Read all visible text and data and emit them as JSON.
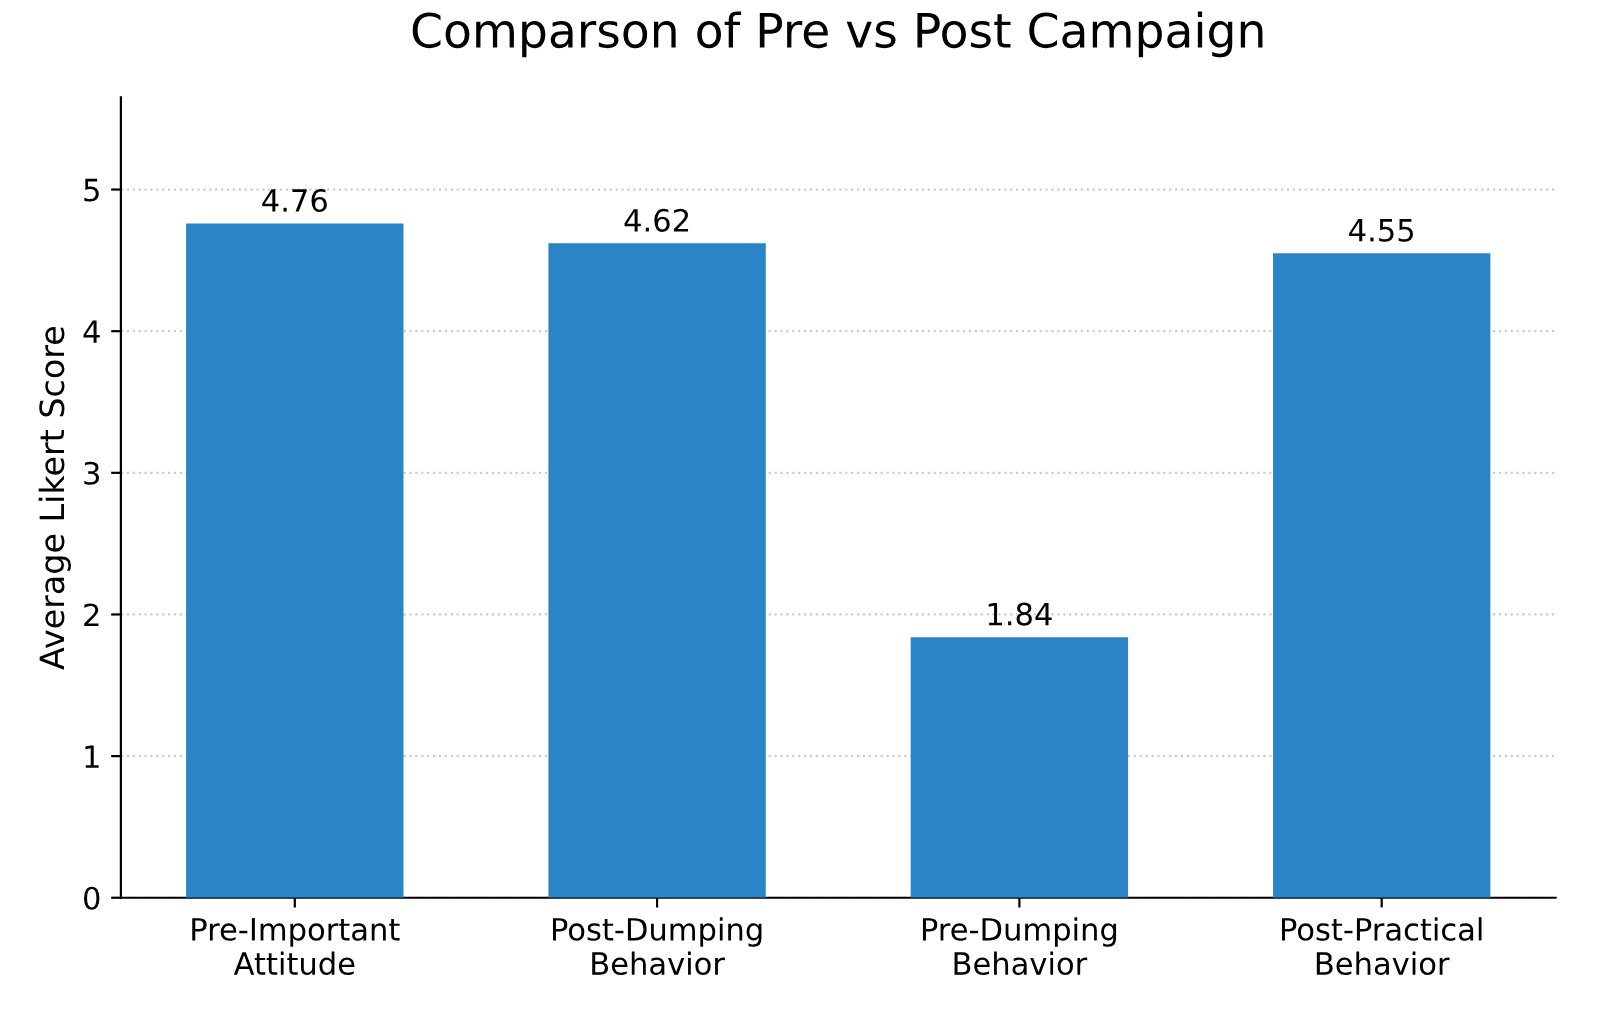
{
  "chart_data": {
    "type": "bar",
    "title": "Comparson of Pre vs Post Campaign",
    "ylabel": "Average Likert Score",
    "categories": [
      "Pre-Important\nAttitude",
      "Post-Dumping\nBehavior",
      "Pre-Dumping\nBehavior",
      "Post-Practical\nBehavior"
    ],
    "values": [
      4.76,
      4.62,
      1.84,
      4.55
    ],
    "color": "#2b84c6",
    "ylim": [
      0,
      5.65
    ],
    "yticks": [
      0,
      1,
      2,
      3,
      4,
      5
    ],
    "grid": "y",
    "data_labels": true
  }
}
